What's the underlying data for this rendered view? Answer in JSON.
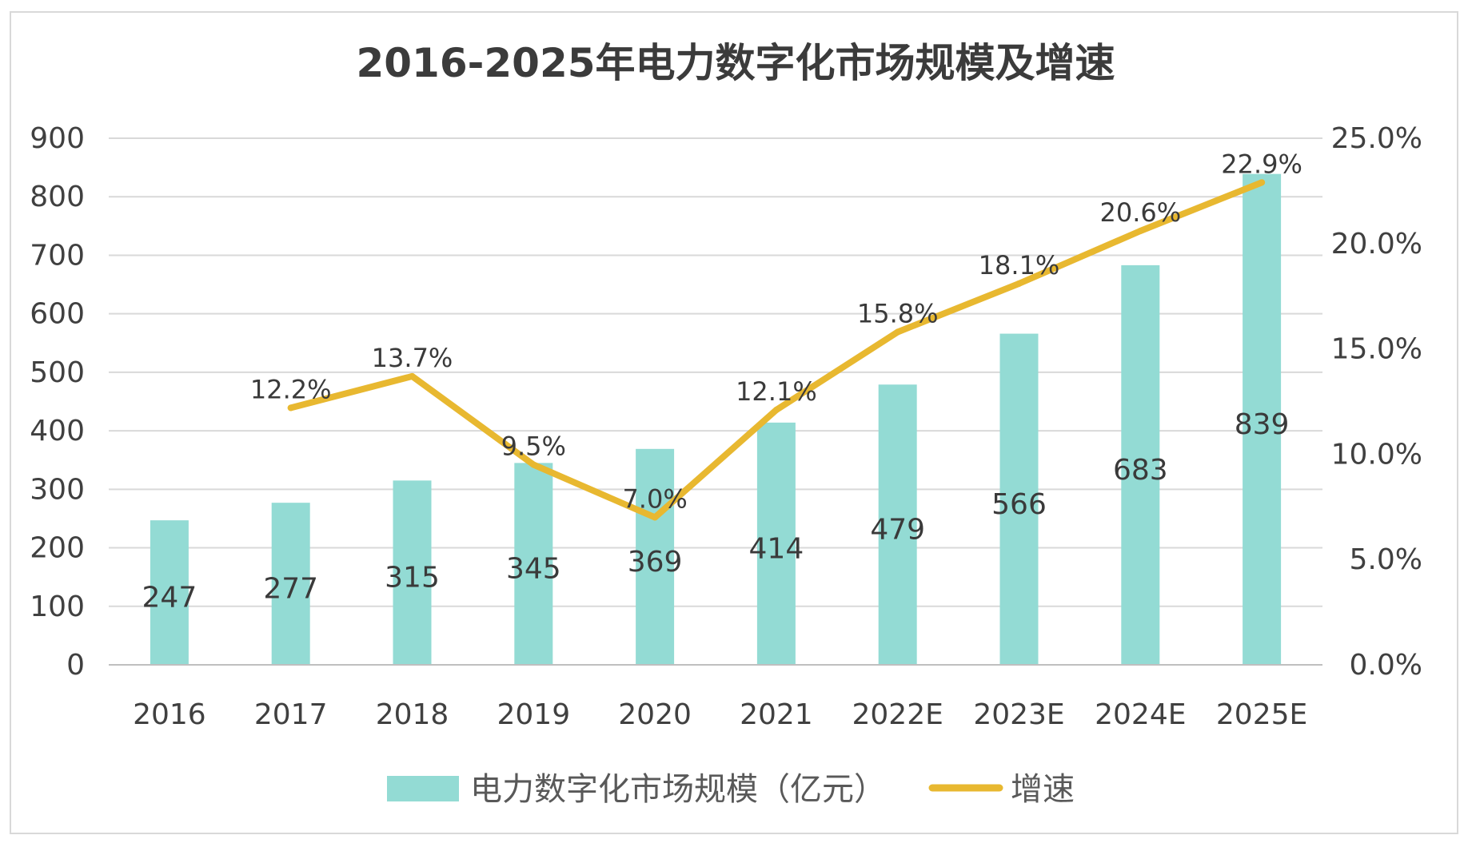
{
  "chart_data": {
    "type": "bar",
    "title": "2016-2025年电力数字化市场规模及增速",
    "categories": [
      "2016",
      "2017",
      "2018",
      "2019",
      "2020",
      "2021",
      "2022E",
      "2023E",
      "2024E",
      "2025E"
    ],
    "series": [
      {
        "name": "电力数字化市场规模（亿元）",
        "type": "bar",
        "axis": "left",
        "values": [
          247,
          277,
          315,
          345,
          369,
          414,
          479,
          566,
          683,
          839
        ],
        "labels": [
          "247",
          "277",
          "315",
          "345",
          "369",
          "414",
          "479",
          "566",
          "683",
          "839"
        ],
        "color": "#93dbd4"
      },
      {
        "name": "增速",
        "type": "line",
        "axis": "right",
        "values": [
          null,
          12.2,
          13.7,
          9.5,
          7.0,
          12.1,
          15.8,
          18.1,
          20.6,
          22.9
        ],
        "labels": [
          "",
          "12.2%",
          "13.7%",
          "9.5%",
          "7.0%",
          "12.1%",
          "15.8%",
          "18.1%",
          "20.6%",
          "22.9%"
        ],
        "color": "#e8b830"
      }
    ],
    "y_left": {
      "range": [
        0,
        900
      ],
      "ticks": [
        "0",
        "100",
        "200",
        "300",
        "400",
        "500",
        "600",
        "700",
        "800",
        "900"
      ]
    },
    "y_right": {
      "range": [
        0,
        25
      ],
      "ticks": [
        "0.0%",
        "5.0%",
        "10.0%",
        "15.0%",
        "20.0%",
        "25.0%"
      ]
    },
    "grid": true,
    "legend": "bottom"
  }
}
